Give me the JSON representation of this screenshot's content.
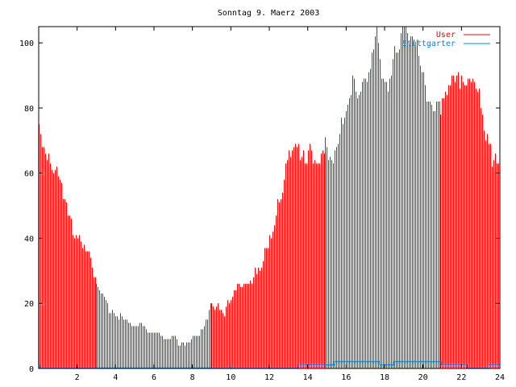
{
  "chart_data": {
    "type": "bar",
    "title": "Sonntag 9. Maerz 2003",
    "xlabel": "",
    "ylabel": "",
    "xlim": [
      0,
      24
    ],
    "ylim": [
      0,
      105
    ],
    "xticks": [
      2,
      4,
      6,
      8,
      10,
      12,
      14,
      16,
      18,
      20,
      22,
      24
    ],
    "yticks": [
      0,
      20,
      40,
      60,
      80,
      100
    ],
    "interval_hours": 0.08333,
    "legend_position": "top-right",
    "series": [
      {
        "name": "User",
        "color": "#ff0000",
        "style": "impulses",
        "values": [
          75,
          72,
          68,
          68,
          66,
          64,
          66,
          63,
          61,
          60,
          61,
          62,
          59,
          58,
          57,
          52,
          52,
          51,
          47,
          47,
          46,
          41,
          40,
          41,
          40,
          41,
          39,
          37,
          38,
          36,
          36,
          36,
          34,
          31,
          28,
          28,
          26,
          25,
          24,
          23,
          23,
          22,
          21,
          20,
          17,
          17,
          18,
          17,
          16,
          16,
          15,
          17,
          16,
          15,
          15,
          15,
          14,
          14,
          13,
          13,
          13,
          13,
          13,
          14,
          14,
          13,
          13,
          12,
          11,
          11,
          11,
          11,
          11,
          11,
          11,
          11,
          10,
          10,
          9,
          9,
          9,
          9,
          9,
          10,
          10,
          10,
          9,
          7,
          7,
          8,
          8,
          7,
          8,
          8,
          8,
          9,
          10,
          10,
          10,
          10,
          10,
          12,
          12,
          13,
          15,
          15,
          18,
          20,
          20,
          19,
          18,
          19,
          20,
          18,
          18,
          17,
          16,
          19,
          21,
          20,
          21,
          22,
          24,
          24,
          26,
          26,
          25,
          25,
          26,
          26,
          26,
          26,
          27,
          26,
          28,
          31,
          29,
          31,
          30,
          31,
          33,
          37,
          37,
          37,
          41,
          40,
          42,
          44,
          47,
          52,
          51,
          52,
          54,
          58,
          63,
          64,
          67,
          65,
          67,
          68,
          69,
          68,
          69,
          64,
          65,
          67,
          63,
          63,
          67,
          69,
          67,
          63,
          64,
          63,
          63,
          63,
          66,
          67,
          66,
          71,
          68,
          64,
          65,
          64,
          63,
          67,
          68,
          69,
          72,
          77,
          75,
          77,
          79,
          81,
          83,
          84,
          90,
          89,
          85,
          83,
          84,
          85,
          88,
          89,
          89,
          88,
          91,
          92,
          97,
          98,
          102,
          105,
          100,
          95,
          89,
          89,
          88,
          88,
          85,
          89,
          90,
          95,
          99,
          97,
          97,
          98,
          103,
          105,
          105,
          105,
          103,
          100,
          102,
          102,
          101,
          99,
          101,
          96,
          93,
          91,
          91,
          87,
          82,
          82,
          82,
          81,
          79,
          79,
          82,
          82,
          82,
          78,
          83,
          83,
          85,
          84,
          87,
          87,
          90,
          90,
          88,
          90,
          91,
          86,
          90,
          88,
          87,
          87,
          89,
          89,
          88,
          89,
          88,
          86,
          85,
          86,
          80,
          78,
          73,
          70,
          72,
          69,
          69,
          62,
          64,
          66,
          63,
          63
        ]
      },
      {
        "name": "Stuttgarter",
        "color": "#0080ff",
        "style": "steps",
        "x": [
          0,
          0.05,
          13.5,
          15.4,
          17.75,
          18.5,
          20.95,
          22.3,
          23.45,
          24
        ],
        "y": [
          1,
          0,
          1,
          2,
          1,
          2,
          1,
          0,
          1,
          1
        ]
      }
    ]
  }
}
